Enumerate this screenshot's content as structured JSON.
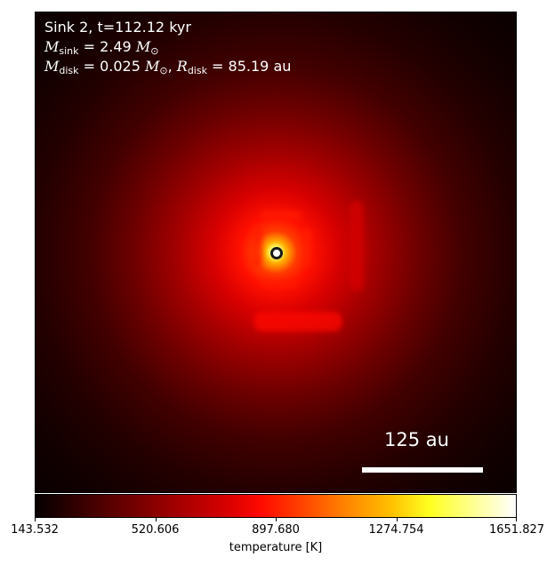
{
  "chart_data": {
    "type": "heatmap",
    "title_lines": {
      "sink_line": "Sink 2, t=112.12 kyr",
      "m_sym": "M",
      "m_sink_sub": "sink",
      "m_sink_val": " = 2.49 ",
      "m_disk_sub": "disk",
      "m_disk_val": " = 0.025 ",
      "r_sym": "R",
      "r_disk_sub": "disk",
      "r_disk_val": " = 85.19 au",
      "msun_m": "M",
      "sun_sym": "⊙",
      "comma": ", "
    },
    "scale_bar_label": "125 au",
    "colorbar": {
      "label": "temperature [K]",
      "vmin": 143.532,
      "vmax": 1651.827,
      "ticks": [
        "143.532",
        "520.606",
        "897.680",
        "1274.754",
        "1651.827"
      ]
    },
    "colormap": "hot",
    "colors": {
      "background": "#000000",
      "annotation": "#ffffff"
    }
  }
}
